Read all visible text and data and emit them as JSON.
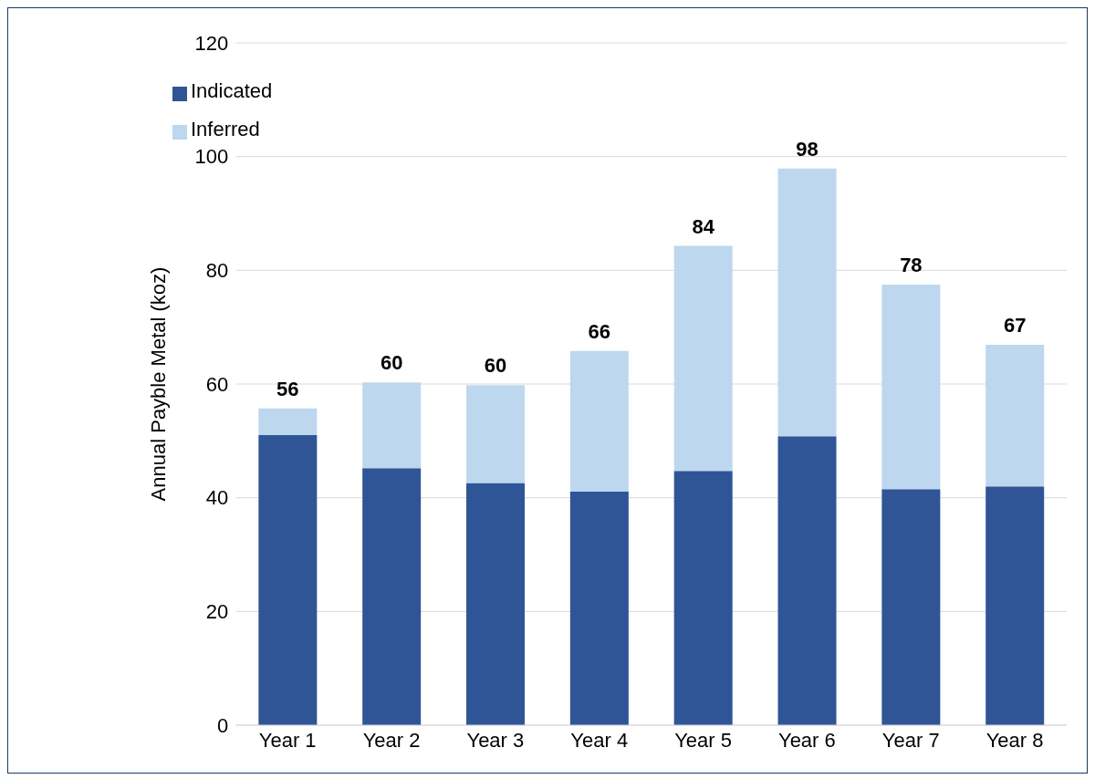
{
  "chart_data": {
    "type": "bar",
    "ylabel": "Annual Payble Metal (koz)",
    "categories": [
      "Year 1",
      "Year 2",
      "Year 3",
      "Year 4",
      "Year 5",
      "Year 6",
      "Year 7",
      "Year 8"
    ],
    "series": [
      {
        "name": "Indicated",
        "color": "#2f5597",
        "values": [
          51.0,
          45.2,
          42.6,
          41.1,
          44.7,
          50.8,
          41.5,
          42.0
        ]
      },
      {
        "name": "Inferred",
        "color": "#bdd7ee",
        "values": [
          4.7,
          15.1,
          17.2,
          24.7,
          39.6,
          47.1,
          36.0,
          24.9
        ]
      }
    ],
    "stacked": true,
    "totals": [
      "56",
      "60",
      "60",
      "66",
      "84",
      "98",
      "78",
      "67"
    ],
    "ylim": [
      0,
      120
    ],
    "yticks": [
      0,
      20,
      40,
      60,
      80,
      100,
      120
    ],
    "grid": "y",
    "legend": "top left"
  }
}
